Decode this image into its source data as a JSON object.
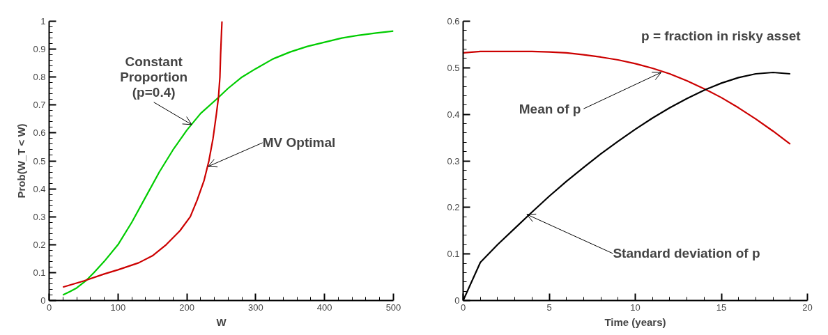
{
  "chart_data": [
    {
      "type": "line",
      "xlabel": "W",
      "ylabel": "Prob(W_T < W)",
      "grid": false,
      "line_style": "solid",
      "marker": "none",
      "xlim": [
        0,
        500
      ],
      "xticks": [
        0,
        100,
        200,
        300,
        400,
        500
      ],
      "ylim": [
        0,
        1
      ],
      "yticks": [
        0,
        0.1,
        0.2,
        0.3,
        0.4,
        0.5,
        0.6,
        0.7,
        0.8,
        0.9,
        1
      ],
      "series": [
        {
          "color": "#00cc00",
          "x": [
            20,
            30,
            40,
            53,
            65,
            80,
            100,
            120,
            140,
            160,
            180,
            200,
            220,
            245,
            260,
            280,
            300,
            325,
            350,
            375,
            400,
            425,
            450,
            475,
            500
          ],
          "values": [
            0.02,
            0.032,
            0.045,
            0.07,
            0.1,
            0.14,
            0.2,
            0.28,
            0.37,
            0.46,
            0.54,
            0.61,
            0.67,
            0.725,
            0.76,
            0.8,
            0.83,
            0.865,
            0.89,
            0.91,
            0.925,
            0.94,
            0.95,
            0.958,
            0.965
          ]
        },
        {
          "color": "#cc0000",
          "x": [
            20,
            50,
            80,
            100,
            130,
            150,
            170,
            190,
            205,
            215,
            225,
            232,
            238,
            243,
            246,
            248,
            249,
            250,
            251
          ],
          "values": [
            0.048,
            0.07,
            0.095,
            0.11,
            0.135,
            0.16,
            0.2,
            0.25,
            0.3,
            0.36,
            0.43,
            0.5,
            0.58,
            0.67,
            0.73,
            0.8,
            0.88,
            0.94,
            1.0
          ]
        }
      ],
      "annotations": [
        {
          "text": "Constant\nProportion\n(p=0.4)",
          "x": 207,
          "y": 0.63
        },
        {
          "text": "MV Optimal",
          "x": 231,
          "y": 0.48
        }
      ]
    },
    {
      "type": "line",
      "xlabel": "Time (years)",
      "grid": false,
      "line_style": "solid",
      "marker": "none",
      "xlim": [
        0,
        20
      ],
      "xticks": [
        0,
        5,
        10,
        15,
        20
      ],
      "ylim": [
        0,
        0.6
      ],
      "yticks": [
        0,
        0.1,
        0.2,
        0.3,
        0.4,
        0.5,
        0.6
      ],
      "series": [
        {
          "color": "#cc0000",
          "x": [
            0,
            1,
            2,
            3,
            4,
            5,
            6,
            7,
            8,
            9,
            10,
            11,
            12,
            13,
            14,
            15,
            16,
            17,
            18,
            19
          ],
          "values": [
            0.532,
            0.535,
            0.535,
            0.535,
            0.535,
            0.534,
            0.532,
            0.528,
            0.523,
            0.517,
            0.509,
            0.499,
            0.487,
            0.472,
            0.455,
            0.436,
            0.414,
            0.39,
            0.364,
            0.336
          ]
        },
        {
          "color": "#000000",
          "x": [
            0,
            1,
            2,
            3,
            4,
            5,
            6,
            7,
            8,
            9,
            10,
            11,
            12,
            13,
            14,
            15,
            16,
            17,
            18,
            19
          ],
          "values": [
            0,
            0.082,
            0.12,
            0.155,
            0.19,
            0.224,
            0.256,
            0.286,
            0.315,
            0.342,
            0.368,
            0.392,
            0.414,
            0.434,
            0.452,
            0.467,
            0.479,
            0.487,
            0.49,
            0.487
          ]
        }
      ],
      "annotations": [
        "p = fraction in risky asset",
        {
          "text": "Mean of p",
          "x": 11.5,
          "y": 0.49
        },
        {
          "text": "Standard deviation of p",
          "x": 3.7,
          "y": 0.185
        }
      ]
    }
  ]
}
